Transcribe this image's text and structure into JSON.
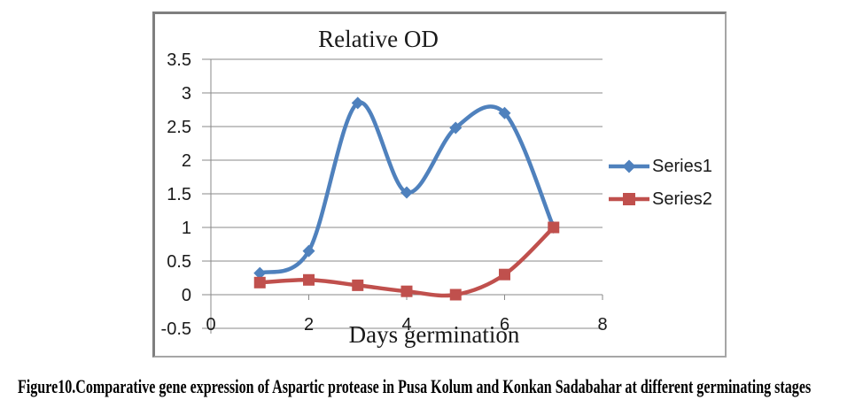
{
  "chart_data": {
    "type": "line",
    "title": "Relative OD",
    "xlabel": "Days germination",
    "ylabel": "",
    "x": [
      1,
      2,
      3,
      4,
      5,
      6,
      7
    ],
    "series": [
      {
        "name": "Series1",
        "color": "#4F81BD",
        "marker": "diamond",
        "values": [
          0.32,
          0.65,
          2.85,
          1.52,
          2.48,
          2.7,
          1.0
        ]
      },
      {
        "name": "Series2",
        "color": "#C0504D",
        "marker": "square",
        "values": [
          0.18,
          0.22,
          0.14,
          0.05,
          0.0,
          0.3,
          1.0
        ]
      }
    ],
    "xlim": [
      0,
      8
    ],
    "ylim": [
      -0.5,
      3.5
    ],
    "x_ticks": [
      0,
      2,
      4,
      6,
      8
    ],
    "y_ticks": [
      -0.5,
      0,
      0.5,
      1,
      1.5,
      2,
      2.5,
      3,
      3.5
    ],
    "grid": true,
    "smooth": true,
    "legend_position": "right"
  },
  "caption": {
    "text": "Figure10.Comparative gene expression of Aspartic protease in Pusa Kolum and Konkan Sadabahar at different germinating stages"
  }
}
